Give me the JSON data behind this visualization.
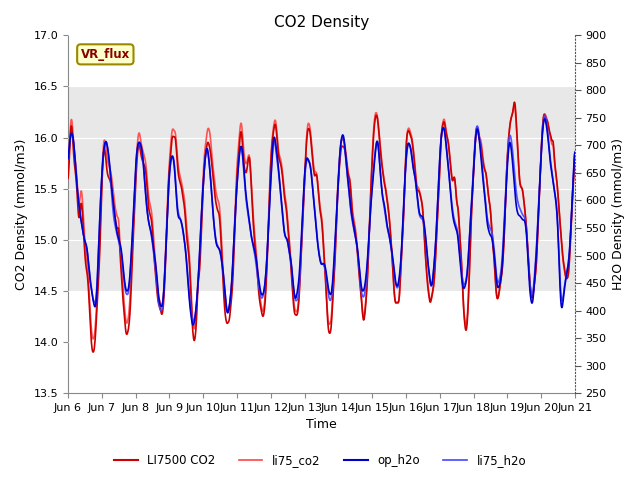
{
  "title": "CO2 Density",
  "xlabel": "Time",
  "ylabel_left": "CO2 Density (mmol/m3)",
  "ylabel_right": "H2O Density (mmol/m3)",
  "ylim_left": [
    13.5,
    17.0
  ],
  "ylim_right": [
    250,
    900
  ],
  "yticks_left": [
    13.5,
    14.0,
    14.5,
    15.0,
    15.5,
    16.0,
    16.5,
    17.0
  ],
  "yticks_right": [
    250,
    300,
    350,
    400,
    450,
    500,
    550,
    600,
    650,
    700,
    750,
    800,
    850,
    900
  ],
  "xtick_labels": [
    "Jun 6",
    "Jun 7",
    "Jun 8",
    "Jun 9",
    "Jun 10",
    "Jun 11",
    "Jun 12",
    "Jun 13",
    "Jun 14",
    "Jun 15",
    "Jun 16",
    "Jun 17",
    "Jun 18",
    "Jun 19",
    "Jun 20",
    "Jun 21"
  ],
  "vr_flux_label": "VR_flux",
  "legend_entries": [
    "LI7500 CO2",
    "li75_co2",
    "op_h2o",
    "li75_h2o"
  ],
  "co2_color1": "#cc0000",
  "co2_color2": "#ff4444",
  "h2o_color1": "#0000cc",
  "h2o_color2": "#4444ff",
  "line_width": 1.2,
  "background_color": "#ffffff",
  "plot_bg_color": "#ffffff",
  "shaded_band": [
    14.5,
    16.5
  ],
  "shaded_color": "#e8e8e8",
  "n_points": 1500,
  "seed": 7
}
